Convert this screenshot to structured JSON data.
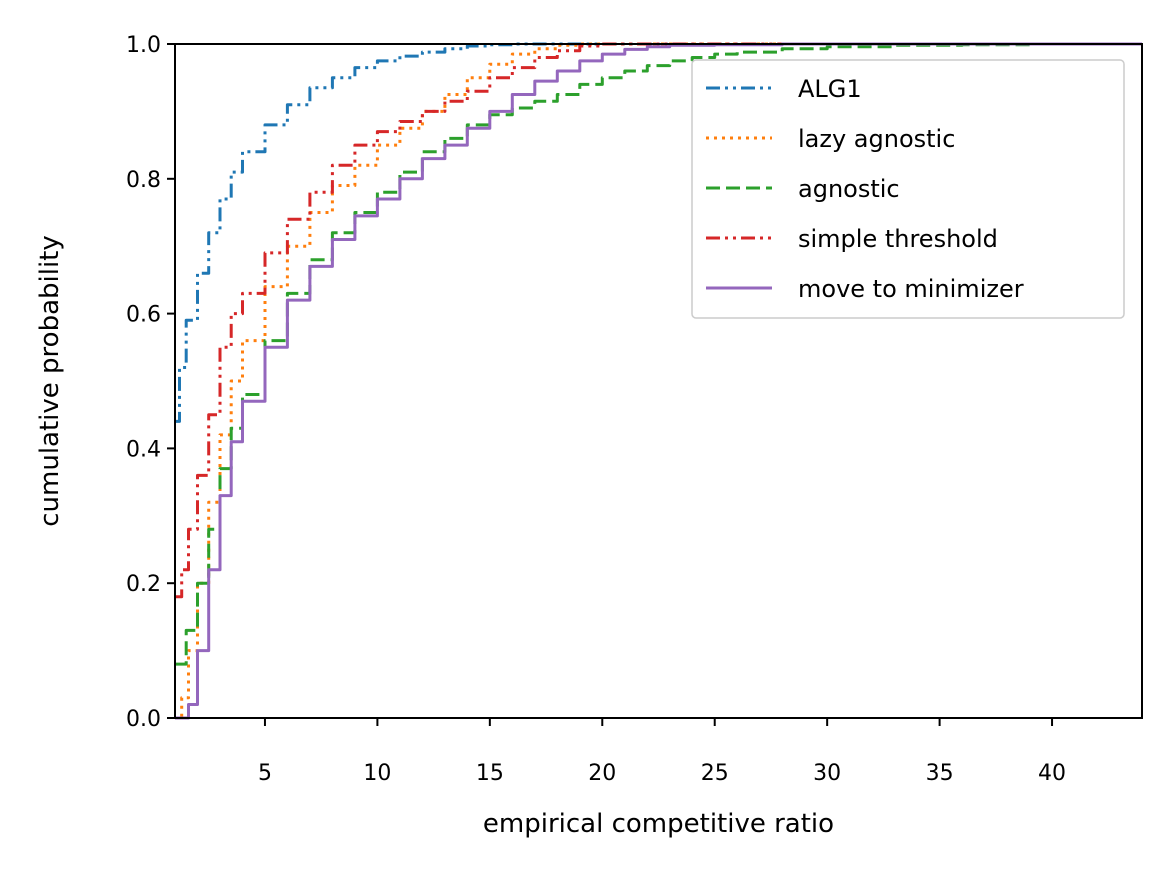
{
  "chart_data": {
    "type": "line",
    "xlabel": "empirical competitive ratio",
    "ylabel": "cumulative probability",
    "xlim": [
      1,
      44
    ],
    "ylim": [
      0.0,
      1.0
    ],
    "xticks": [
      5,
      10,
      15,
      20,
      25,
      30,
      35,
      40
    ],
    "yticks": [
      0.0,
      0.2,
      0.4,
      0.6,
      0.8,
      1.0
    ],
    "xtick_labels": [
      "5",
      "10",
      "15",
      "20",
      "25",
      "30",
      "35",
      "40"
    ],
    "ytick_labels": [
      "0.0",
      "0.2",
      "0.4",
      "0.6",
      "0.8",
      "1.0"
    ],
    "grid": false,
    "legend_position": "top-right",
    "series": [
      {
        "name": "ALG1",
        "color": "#1f77b4",
        "dash": "dash-dot-dot",
        "x": [
          1.0,
          1.2,
          1.5,
          2.0,
          2.5,
          3.0,
          3.5,
          4.0,
          5.0,
          6.0,
          7.0,
          8.0,
          9.0,
          10.0,
          11.0,
          12.0,
          13.0,
          14.0,
          15.0,
          16.0
        ],
        "y": [
          0.44,
          0.52,
          0.59,
          0.66,
          0.72,
          0.77,
          0.81,
          0.84,
          0.88,
          0.91,
          0.935,
          0.95,
          0.965,
          0.975,
          0.982,
          0.988,
          0.993,
          0.997,
          0.999,
          1.0
        ]
      },
      {
        "name": "lazy agnostic",
        "color": "#ff7f0e",
        "dash": "dotted",
        "x": [
          1.0,
          1.3,
          1.6,
          2.0,
          2.5,
          3.0,
          3.5,
          4.0,
          5.0,
          6.0,
          7.0,
          8.0,
          9.0,
          10.0,
          11.0,
          12.0,
          13.0,
          14.0,
          15.0,
          16.0,
          17.0,
          18.0,
          19.0
        ],
        "y": [
          0.0,
          0.03,
          0.1,
          0.2,
          0.32,
          0.42,
          0.5,
          0.56,
          0.64,
          0.7,
          0.75,
          0.79,
          0.82,
          0.85,
          0.875,
          0.9,
          0.925,
          0.95,
          0.97,
          0.985,
          0.993,
          0.998,
          1.0
        ]
      },
      {
        "name": "agnostic",
        "color": "#2ca02c",
        "dash": "dashed",
        "x": [
          1.0,
          1.5,
          2.0,
          2.5,
          3.0,
          3.5,
          4.0,
          5.0,
          6.0,
          7.0,
          8.0,
          9.0,
          10.0,
          11.0,
          12.0,
          13.0,
          14.0,
          15.0,
          16.0,
          17.0,
          18.0,
          19.0,
          20.0,
          21.0,
          22.0,
          23.0,
          24.0,
          25.0,
          26.0,
          28.0,
          30.0,
          33.0,
          36.0,
          39.0,
          42.0
        ],
        "y": [
          0.08,
          0.13,
          0.2,
          0.28,
          0.37,
          0.43,
          0.48,
          0.56,
          0.63,
          0.68,
          0.72,
          0.75,
          0.78,
          0.81,
          0.84,
          0.86,
          0.88,
          0.895,
          0.905,
          0.915,
          0.925,
          0.94,
          0.95,
          0.96,
          0.968,
          0.975,
          0.98,
          0.985,
          0.988,
          0.993,
          0.996,
          0.998,
          0.999,
          1.0,
          1.0
        ]
      },
      {
        "name": "simple threshold",
        "color": "#d62728",
        "dash": "dash-dot-dot",
        "x": [
          1.0,
          1.3,
          1.6,
          2.0,
          2.5,
          3.0,
          3.5,
          4.0,
          5.0,
          6.0,
          7.0,
          8.0,
          9.0,
          10.0,
          11.0,
          12.0,
          13.0,
          14.0,
          15.0,
          16.0,
          17.0,
          18.0,
          19.0,
          20.0
        ],
        "y": [
          0.18,
          0.22,
          0.28,
          0.36,
          0.45,
          0.55,
          0.6,
          0.63,
          0.69,
          0.74,
          0.78,
          0.82,
          0.85,
          0.87,
          0.885,
          0.9,
          0.915,
          0.93,
          0.95,
          0.965,
          0.98,
          0.99,
          0.997,
          1.0
        ]
      },
      {
        "name": "move to minimizer",
        "color": "#9467bd",
        "dash": "solid",
        "x": [
          1.0,
          1.3,
          1.6,
          2.0,
          2.5,
          3.0,
          3.5,
          4.0,
          5.0,
          6.0,
          7.0,
          8.0,
          9.0,
          10.0,
          11.0,
          12.0,
          13.0,
          14.0,
          15.0,
          16.0,
          17.0,
          18.0,
          19.0,
          20.0,
          21.0,
          22.0,
          23.0,
          25.0,
          28.0,
          30.0
        ],
        "y": [
          0.0,
          0.0,
          0.02,
          0.1,
          0.22,
          0.33,
          0.41,
          0.47,
          0.55,
          0.62,
          0.67,
          0.71,
          0.745,
          0.77,
          0.8,
          0.83,
          0.85,
          0.875,
          0.9,
          0.925,
          0.945,
          0.96,
          0.975,
          0.985,
          0.992,
          0.996,
          0.998,
          0.999,
          1.0,
          1.0
        ]
      }
    ]
  }
}
